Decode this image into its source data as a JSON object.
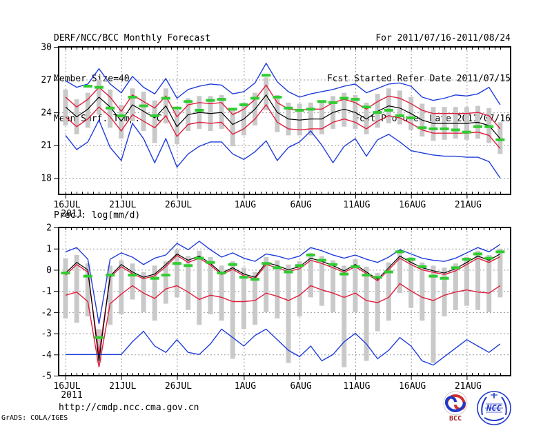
{
  "header": {
    "title": "DERF/NCC/BCC Monthly Forecast",
    "member_size": "Member Size=40",
    "date_range": "For 2011/07/16-2011/08/24",
    "fcst_started": "Fcst Started Refer Date 2011/07/15",
    "fcst_produced": "Fcst Produced Date 2011/07/16"
  },
  "footer": {
    "url": "http://cmdp.ncc.cma.gov.cn",
    "grads_credit": "GrADS: COLA/IGES",
    "logos": [
      {
        "id": "bcc",
        "label": "BCC"
      },
      {
        "id": "ncc",
        "label": "NCC"
      }
    ]
  },
  "colors": {
    "blue": "#1e3cdc",
    "red": "#e01e3c",
    "black": "#000000",
    "green": "#30cc30",
    "bar": "#c9c9c9",
    "grid": "#999999",
    "text": "#000000",
    "logo_red": "#c03030",
    "logo_blue": "#2038c8"
  },
  "chart_data": [
    {
      "type": "line",
      "title": "Mean Surf. Temp.: °C",
      "days": 40,
      "x_start_date": "2011/07/16",
      "x_end_date": "2011/08/24",
      "year_label": "2011",
      "ylim": [
        16.5,
        30
      ],
      "grid": true,
      "yticks": [
        {
          "value": 30,
          "label": "30"
        },
        {
          "value": 27,
          "label": "27"
        },
        {
          "value": 24,
          "label": "24"
        },
        {
          "value": 21,
          "label": "21"
        },
        {
          "value": 18,
          "label": "18"
        }
      ],
      "xticks": [
        {
          "day": 0,
          "label": "16JUL"
        },
        {
          "day": 5,
          "label": "21JUL"
        },
        {
          "day": 10,
          "label": "26JUL"
        },
        {
          "day": 16,
          "label": "1AUG"
        },
        {
          "day": 21,
          "label": "6AUG"
        },
        {
          "day": 26,
          "label": "11AUG"
        },
        {
          "day": 31,
          "label": "16AUG"
        },
        {
          "day": 36,
          "label": "21AUG"
        }
      ],
      "series": [
        {
          "name": "ensemble-max",
          "color_key": "blue",
          "values": [
            26.9,
            26.3,
            26.6,
            28.0,
            26.6,
            25.8,
            27.3,
            26.3,
            25.7,
            27.1,
            25.3,
            26.1,
            26.4,
            26.6,
            26.5,
            25.7,
            25.9,
            26.7,
            28.5,
            26.8,
            25.9,
            25.4,
            25.7,
            25.9,
            26.1,
            26.4,
            26.6,
            25.8,
            26.2,
            26.6,
            26.7,
            26.4,
            25.4,
            25.1,
            25.3,
            25.6,
            25.5,
            25.7,
            26.3,
            24.7
          ]
        },
        {
          "name": "mean-plus-sd",
          "color_key": "red",
          "values": [
            25.4,
            24.5,
            25.2,
            26.3,
            25.4,
            24.1,
            25.6,
            25.0,
            24.4,
            25.5,
            23.6,
            24.7,
            24.9,
            24.8,
            24.9,
            23.8,
            24.3,
            25.2,
            26.5,
            24.9,
            24.3,
            24.2,
            24.3,
            24.3,
            24.9,
            25.2,
            24.9,
            24.3,
            25.0,
            25.5,
            25.3,
            24.8,
            24.2,
            23.9,
            23.9,
            23.9,
            23.9,
            24.0,
            23.7,
            22.5
          ]
        },
        {
          "name": "mean-minus-sd",
          "color_key": "red",
          "values": [
            23.6,
            22.7,
            23.4,
            24.5,
            23.6,
            22.3,
            23.8,
            23.2,
            22.6,
            23.7,
            21.8,
            22.9,
            23.1,
            23.0,
            23.1,
            22.0,
            22.5,
            23.4,
            24.7,
            23.1,
            22.5,
            22.4,
            22.5,
            22.5,
            23.1,
            23.4,
            23.1,
            22.5,
            23.2,
            23.7,
            23.5,
            23.0,
            22.4,
            22.1,
            22.1,
            22.1,
            22.1,
            22.2,
            21.9,
            20.7
          ]
        },
        {
          "name": "ensemble-min",
          "color_key": "blue",
          "values": [
            21.9,
            20.6,
            21.3,
            23.3,
            20.8,
            19.6,
            23.0,
            21.6,
            19.4,
            21.6,
            19.0,
            20.2,
            20.9,
            21.3,
            21.3,
            20.2,
            19.7,
            20.4,
            21.4,
            19.6,
            20.8,
            21.3,
            22.3,
            21.0,
            19.4,
            20.9,
            21.6,
            20.0,
            21.5,
            22.0,
            21.3,
            20.5,
            20.3,
            20.1,
            20.0,
            20.0,
            19.9,
            19.9,
            19.5,
            18.0
          ]
        },
        {
          "name": "ensemble-mean",
          "color_key": "black",
          "values": [
            24.5,
            23.6,
            24.3,
            25.4,
            24.5,
            23.2,
            24.7,
            24.1,
            23.5,
            24.6,
            22.7,
            23.8,
            24.0,
            23.9,
            24.0,
            22.9,
            23.4,
            24.3,
            25.6,
            24.0,
            23.4,
            23.3,
            23.4,
            23.4,
            24.0,
            24.3,
            24.0,
            23.4,
            24.1,
            24.6,
            24.4,
            23.9,
            23.3,
            23.0,
            23.0,
            23.0,
            23.0,
            23.1,
            22.8,
            21.6
          ]
        }
      ],
      "obs": {
        "name": "observation",
        "color_key": "green",
        "values": [
          null,
          null,
          26.4,
          26.3,
          24.4,
          23.7,
          25.4,
          24.6,
          23.7,
          25.3,
          24.4,
          25.0,
          24.2,
          25.1,
          25.2,
          24.3,
          24.7,
          25.3,
          27.4,
          25.4,
          24.4,
          24.2,
          24.3,
          25.0,
          24.9,
          25.3,
          25.2,
          24.5,
          24.0,
          24.2,
          23.7,
          23.5,
          22.6,
          22.5,
          22.5,
          22.4,
          22.2,
          22.7,
          22.7,
          21.5
        ]
      },
      "bars": {
        "name": "member-spread",
        "color_key": "bar",
        "low": [
          22.8,
          22.0,
          22.6,
          23.8,
          22.6,
          21.6,
          23.2,
          22.3,
          21.2,
          23.0,
          21.1,
          22.3,
          22.5,
          22.3,
          22.5,
          20.9,
          21.9,
          22.8,
          24.2,
          22.2,
          21.9,
          21.9,
          21.9,
          22.0,
          22.5,
          22.7,
          22.5,
          22.0,
          22.6,
          23.0,
          22.9,
          22.4,
          21.8,
          21.4,
          21.5,
          21.6,
          21.5,
          21.6,
          21.2,
          20.2
        ],
        "high": [
          26.1,
          25.2,
          25.8,
          27.0,
          26.1,
          24.7,
          26.2,
          25.9,
          25.1,
          26.2,
          24.2,
          25.3,
          25.5,
          25.5,
          25.6,
          24.4,
          24.9,
          25.8,
          27.2,
          25.6,
          24.9,
          24.8,
          24.9,
          24.9,
          25.5,
          25.8,
          25.6,
          24.9,
          25.7,
          26.2,
          26.0,
          25.4,
          24.8,
          24.5,
          24.5,
          24.5,
          24.5,
          24.6,
          24.4,
          23.1
        ]
      }
    },
    {
      "type": "line",
      "title": "Prec.: log(mm/d)",
      "days": 40,
      "x_start_date": "2011/07/16",
      "x_end_date": "2011/08/24",
      "year_label": "2011",
      "ylim": [
        -5,
        2
      ],
      "grid": true,
      "yticks": [
        {
          "value": 2,
          "label": "2"
        },
        {
          "value": 1,
          "label": "1"
        },
        {
          "value": 0,
          "label": "0"
        },
        {
          "value": -1,
          "label": "-1"
        },
        {
          "value": -2,
          "label": "-2"
        },
        {
          "value": -3,
          "label": "-3"
        },
        {
          "value": -4,
          "label": "-4"
        },
        {
          "value": -5,
          "label": "-5"
        }
      ],
      "xticks": [
        {
          "day": 0,
          "label": "16JUL"
        },
        {
          "day": 5,
          "label": "21JUL"
        },
        {
          "day": 10,
          "label": "26JUL"
        },
        {
          "day": 16,
          "label": "1AUG"
        },
        {
          "day": 21,
          "label": "6AUG"
        },
        {
          "day": 26,
          "label": "11AUG"
        },
        {
          "day": 31,
          "label": "16AUG"
        },
        {
          "day": 36,
          "label": "21AUG"
        }
      ],
      "series": [
        {
          "name": "ensemble-max",
          "color_key": "blue",
          "values": [
            0.85,
            1.05,
            0.5,
            -2.55,
            0.5,
            0.8,
            0.6,
            0.25,
            0.55,
            0.7,
            1.25,
            0.95,
            1.35,
            0.95,
            0.6,
            0.8,
            0.55,
            0.4,
            0.75,
            0.65,
            0.5,
            0.65,
            1.05,
            0.9,
            0.7,
            0.55,
            0.7,
            0.5,
            0.35,
            0.6,
            0.95,
            0.75,
            0.55,
            0.45,
            0.4,
            0.55,
            0.8,
            1.05,
            0.85,
            1.2
          ]
        },
        {
          "name": "mean-plus-sd",
          "color_key": "red",
          "values": [
            -0.25,
            0.25,
            -0.1,
            -4.0,
            -0.35,
            0.15,
            -0.18,
            -0.42,
            -0.28,
            0.15,
            0.68,
            0.35,
            0.55,
            0.22,
            -0.22,
            0.02,
            -0.28,
            -0.42,
            0.25,
            0.1,
            -0.08,
            0.05,
            0.45,
            0.3,
            0.1,
            -0.12,
            0.15,
            -0.18,
            -0.52,
            0.0,
            0.55,
            0.25,
            0.0,
            -0.12,
            -0.22,
            -0.05,
            0.25,
            0.55,
            0.35,
            0.62
          ]
        },
        {
          "name": "mean-minus-sd",
          "color_key": "red",
          "values": [
            -1.2,
            -1.05,
            -1.5,
            -4.6,
            -1.6,
            -1.15,
            -0.75,
            -1.1,
            -1.35,
            -0.9,
            -0.75,
            -1.05,
            -1.4,
            -1.2,
            -1.3,
            -1.5,
            -1.5,
            -1.45,
            -1.1,
            -1.25,
            -1.45,
            -1.2,
            -0.75,
            -0.95,
            -1.1,
            -1.3,
            -1.1,
            -1.45,
            -1.55,
            -1.3,
            -0.65,
            -1.0,
            -1.3,
            -1.45,
            -1.2,
            -1.05,
            -0.95,
            -1.05,
            -1.1,
            -0.75
          ]
        },
        {
          "name": "ensemble-min",
          "color_key": "blue",
          "values": [
            -4.0,
            -4.0,
            -4.0,
            -4.0,
            -4.0,
            -4.0,
            -3.4,
            -2.9,
            -3.6,
            -3.9,
            -3.3,
            -3.9,
            -4.0,
            -3.5,
            -2.8,
            -3.2,
            -3.6,
            -3.1,
            -2.8,
            -3.3,
            -3.8,
            -4.1,
            -3.6,
            -4.3,
            -4.0,
            -3.4,
            -3.0,
            -3.5,
            -4.2,
            -3.8,
            -3.2,
            -3.6,
            -4.3,
            -4.5,
            -4.1,
            -3.7,
            -3.3,
            -3.6,
            -3.9,
            -3.5
          ]
        },
        {
          "name": "ensemble-mean",
          "color_key": "black",
          "values": [
            -0.15,
            0.35,
            0.0,
            -4.3,
            -0.3,
            0.25,
            -0.1,
            -0.35,
            -0.2,
            0.25,
            0.75,
            0.45,
            0.65,
            0.3,
            -0.15,
            0.1,
            -0.2,
            -0.35,
            0.35,
            0.2,
            0.0,
            0.15,
            0.55,
            0.4,
            0.2,
            -0.05,
            0.25,
            -0.1,
            -0.45,
            0.1,
            0.65,
            0.35,
            0.1,
            -0.05,
            -0.15,
            0.05,
            0.35,
            0.65,
            0.45,
            0.75
          ]
        }
      ],
      "obs": {
        "name": "observation",
        "color_key": "green",
        "values": [
          -0.15,
          null,
          -0.3,
          -3.2,
          -0.25,
          null,
          -0.25,
          null,
          -0.4,
          -0.25,
          0.3,
          0.2,
          0.55,
          0.35,
          -0.15,
          0.25,
          -0.35,
          -0.45,
          0.3,
          0.1,
          -0.1,
          0.2,
          0.7,
          0.45,
          0.25,
          -0.2,
          0.15,
          -0.25,
          -0.35,
          -0.1,
          0.85,
          0.5,
          0.15,
          -0.3,
          -0.4,
          0.1,
          0.5,
          0.75,
          0.55,
          0.85
        ]
      },
      "bars": {
        "name": "member-spread",
        "color_key": "bar",
        "low": [
          -2.3,
          -2.5,
          -2.2,
          -4.4,
          -2.6,
          -2.1,
          -1.4,
          -2.0,
          -2.4,
          -1.6,
          -1.3,
          -1.9,
          -2.6,
          -2.1,
          -2.4,
          -4.2,
          -2.8,
          -2.6,
          -2.0,
          -2.3,
          -4.4,
          -2.2,
          -1.3,
          -1.7,
          -2.0,
          -4.6,
          -2.0,
          -4.3,
          -2.9,
          -2.4,
          -1.1,
          -1.8,
          -2.4,
          -4.4,
          -2.2,
          -1.9,
          -1.7,
          -1.9,
          -2.0,
          -1.3
        ],
        "high": [
          0.55,
          0.7,
          0.3,
          -2.8,
          0.2,
          0.45,
          0.3,
          -0.1,
          0.2,
          0.4,
          0.95,
          0.65,
          0.9,
          0.6,
          0.2,
          0.4,
          0.1,
          -0.1,
          0.6,
          0.45,
          0.25,
          0.4,
          0.8,
          0.65,
          0.45,
          0.2,
          0.5,
          0.15,
          -0.15,
          0.35,
          0.9,
          0.6,
          0.35,
          0.2,
          0.1,
          0.3,
          0.6,
          0.9,
          0.7,
          1.0
        ]
      }
    }
  ]
}
